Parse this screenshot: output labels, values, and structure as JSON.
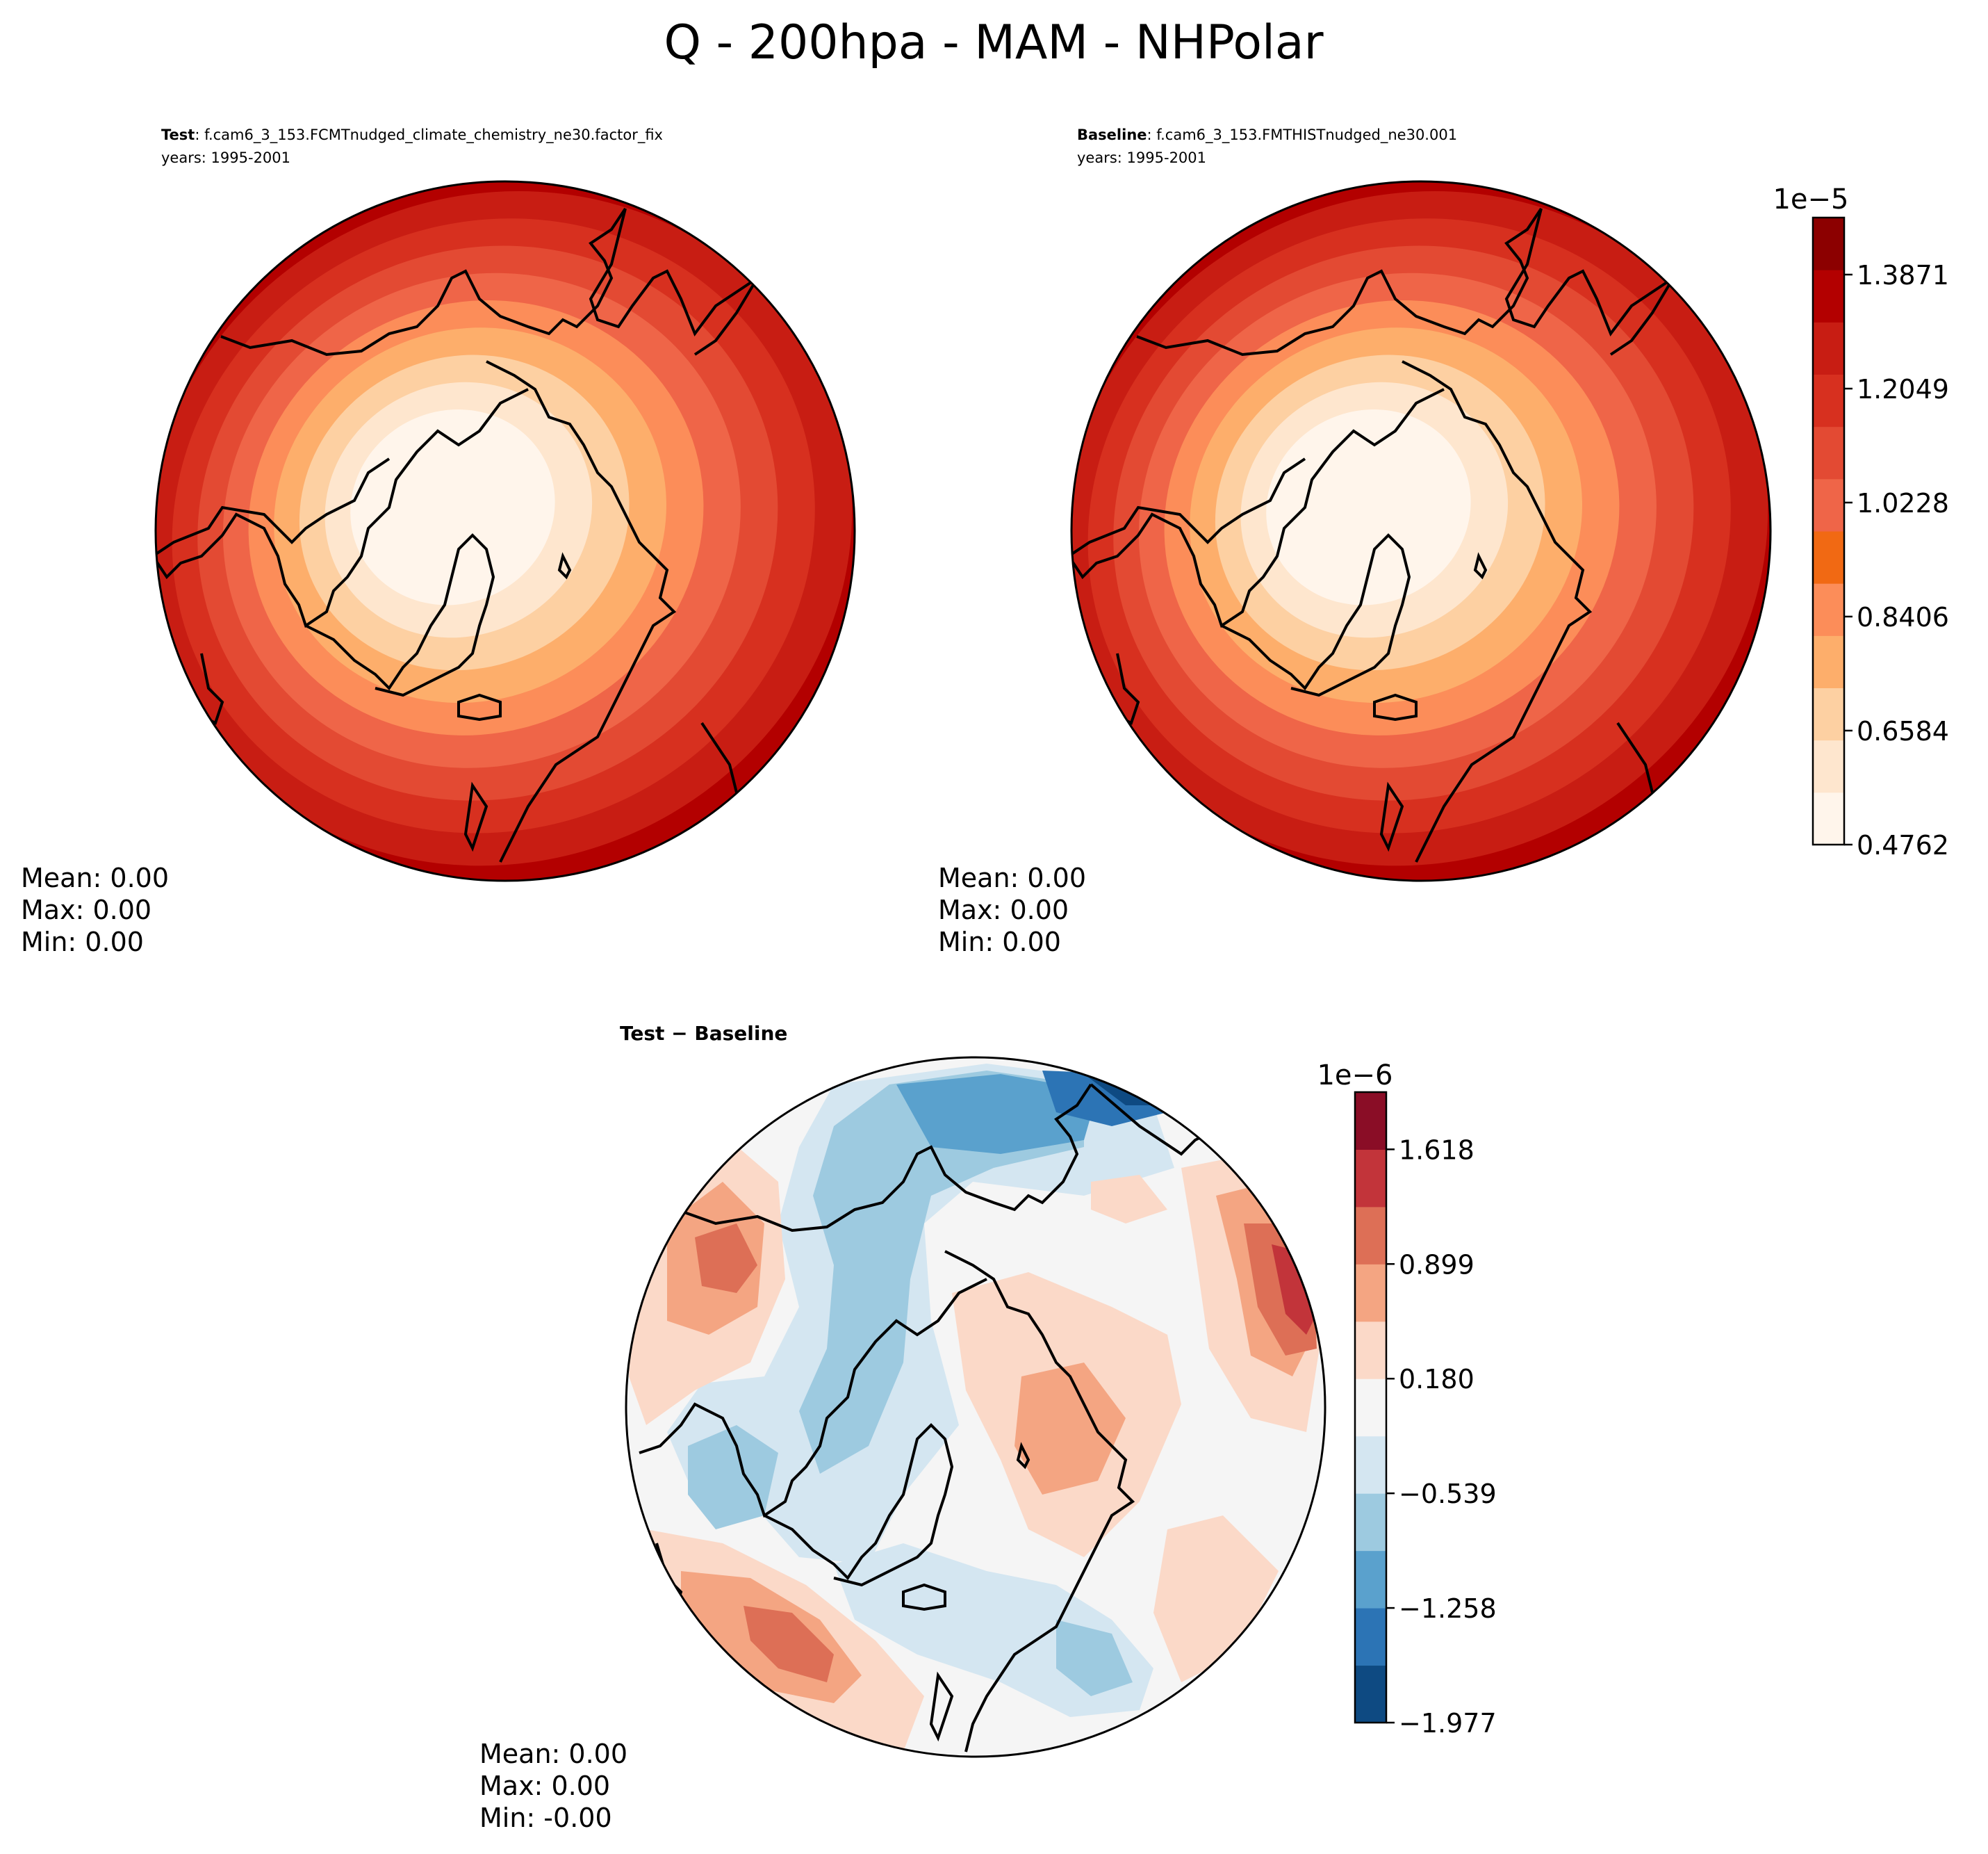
{
  "title": "Q - 200hpa - MAM - NHPolar",
  "panels": [
    {
      "id": "test",
      "label_bold": "Test",
      "label_rest": ": f.cam6_3_153.FCMTnudged_climate_chemistry_ne30.factor_fix",
      "years": "years: 1995-2001",
      "stats": {
        "mean": "Mean:  0.00",
        "max": "Max:  0.00",
        "min": "Min:  0.00"
      }
    },
    {
      "id": "baseline",
      "label_bold": "Baseline",
      "label_rest": ": f.cam6_3_153.FMTHISTnudged_ne30.001",
      "years": "years: 1995-2001",
      "stats": {
        "mean": "Mean:  0.00",
        "max": "Max:  0.00",
        "min": "Min:  0.00"
      }
    },
    {
      "id": "diff",
      "label_bold": "Test − Baseline",
      "label_rest": "",
      "years": "",
      "stats": {
        "mean": "Mean:  0.00",
        "max": "Max:  0.00",
        "min": "Min: -0.00"
      }
    }
  ],
  "colorbars": {
    "abs": {
      "exponent": "1e−5",
      "ticks": [
        "0.4762",
        "0.6584",
        "0.8406",
        "1.0228",
        "1.2049",
        "1.3871"
      ],
      "tick_values": [
        0.4762,
        0.6584,
        0.8406,
        1.0228,
        1.2049,
        1.3871
      ],
      "range": [
        0.4762,
        1.4782
      ],
      "colors": [
        "#fff5eb",
        "#fee6ce",
        "#fdd0a2",
        "#fdae6b",
        "#fc8d59",
        "#f16913",
        "#ef6548",
        "#e34a33",
        "#d7301f",
        "#c81d13",
        "#b30000",
        "#8c0000"
      ]
    },
    "diff": {
      "exponent": "1e−6",
      "ticks": [
        "−1.977",
        "−1.258",
        "−0.539",
        "0.180",
        "0.899",
        "1.618"
      ],
      "tick_values": [
        -1.977,
        -1.258,
        -0.539,
        0.18,
        0.899,
        1.618
      ],
      "range": [
        -1.977,
        1.977
      ],
      "colors": [
        "#0e4a82",
        "#2c74b5",
        "#5aa1cd",
        "#9dcae0",
        "#d4e6f1",
        "#f5f5f5",
        "#fbd9c8",
        "#f4a582",
        "#dd6f56",
        "#c2343a",
        "#8a0d26"
      ]
    }
  },
  "colors": {
    "abs_field": [
      "#fff5eb",
      "#fee6ce",
      "#fdd0a2",
      "#fdae6b",
      "#fc8d59",
      "#ef6548",
      "#e34a33",
      "#d7301f",
      "#c81d13",
      "#b30000"
    ],
    "coast": "#000000"
  }
}
